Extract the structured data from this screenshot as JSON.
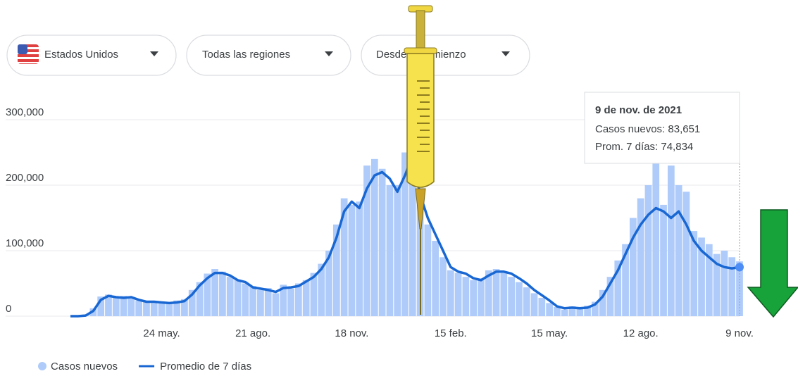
{
  "controls": [
    "Estados Unidos",
    "Todas las regiones",
    "Desde el comienzo"
  ],
  "tooltip": {
    "title": "9 de nov. de 2021",
    "lines": [
      "Casos nuevos: 83,651",
      "Prom. 7 días: 74,834"
    ]
  },
  "chart_data": {
    "type": "bar-line",
    "categories": [
      null,
      null,
      null,
      null,
      null,
      null,
      null,
      null,
      null,
      null,
      null,
      null,
      "24 may.",
      null,
      null,
      null,
      null,
      null,
      null,
      null,
      null,
      null,
      null,
      null,
      "21 ago.",
      null,
      null,
      null,
      null,
      null,
      null,
      null,
      null,
      null,
      null,
      null,
      null,
      "18 nov.",
      null,
      null,
      null,
      null,
      null,
      null,
      null,
      null,
      null,
      null,
      null,
      null,
      "15 feb.",
      null,
      null,
      null,
      null,
      null,
      null,
      null,
      null,
      null,
      null,
      null,
      null,
      "15 may.",
      null,
      null,
      null,
      null,
      null,
      null,
      null,
      null,
      null,
      null,
      null,
      "12 ago.",
      null,
      null,
      null,
      null,
      null,
      null,
      null,
      null,
      null,
      null,
      null,
      null,
      "9 nov."
    ],
    "series": [
      {
        "name": "Casos nuevos",
        "color": "#aecbfa",
        "kind": "bar",
        "values": [
          0,
          0,
          1000,
          12000,
          30000,
          33000,
          28000,
          31000,
          27000,
          24000,
          23000,
          20000,
          22000,
          19000,
          24000,
          26000,
          40000,
          52000,
          65000,
          72000,
          68000,
          60000,
          56000,
          50000,
          46000,
          40000,
          43000,
          35000,
          48000,
          42000,
          50000,
          55000,
          66000,
          80000,
          100000,
          140000,
          180000,
          170000,
          175000,
          230000,
          240000,
          225000,
          200000,
          200000,
          250000,
          280000,
          170000,
          140000,
          115000,
          90000,
          70000,
          66000,
          60000,
          55000,
          58000,
          70000,
          72000,
          66000,
          60000,
          52000,
          44000,
          35000,
          28000,
          20000,
          14000,
          10000,
          15000,
          11000,
          16000,
          22000,
          40000,
          60000,
          85000,
          110000,
          150000,
          180000,
          200000,
          240000,
          170000,
          230000,
          200000,
          190000,
          130000,
          120000,
          110000,
          95000,
          100000,
          90000,
          83651
        ]
      },
      {
        "name": "Promedio de 7 días",
        "color": "#1967d2",
        "kind": "line",
        "values": [
          0,
          0,
          1000,
          8000,
          25000,
          31000,
          29000,
          28000,
          29000,
          25000,
          22000,
          22000,
          21000,
          20000,
          21000,
          23000,
          33000,
          47000,
          58000,
          66000,
          66000,
          62000,
          55000,
          52000,
          44000,
          42000,
          40000,
          37000,
          43000,
          44000,
          46000,
          53000,
          60000,
          72000,
          90000,
          120000,
          160000,
          175000,
          165000,
          195000,
          215000,
          220000,
          210000,
          190000,
          215000,
          245000,
          185000,
          150000,
          125000,
          100000,
          75000,
          68000,
          65000,
          58000,
          55000,
          62000,
          68000,
          68000,
          65000,
          58000,
          50000,
          40000,
          32000,
          24000,
          15000,
          12000,
          13000,
          12000,
          13000,
          18000,
          30000,
          50000,
          70000,
          95000,
          120000,
          140000,
          155000,
          165000,
          160000,
          150000,
          160000,
          140000,
          115000,
          100000,
          90000,
          80000,
          75000,
          73000,
          74834
        ]
      }
    ],
    "ylim": [
      0,
      300000
    ],
    "yticks": [
      0,
      {
        "value": 100000,
        "label": "100,000"
      },
      {
        "value": 200000,
        "label": "200,000"
      },
      {
        "value": 300000,
        "label": "300,000"
      }
    ],
    "grid": true
  }
}
